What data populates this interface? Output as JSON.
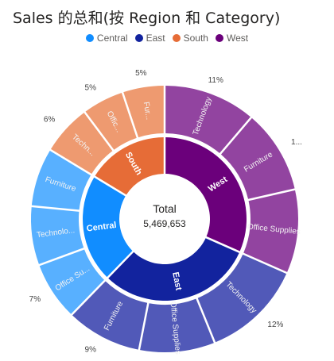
{
  "chart_data": {
    "type": "sunburst",
    "title": "Sales 的总和(按 Region 和 Category)",
    "legend": {
      "position": "top-center",
      "items": [
        {
          "name": "Central",
          "color": "#118dff"
        },
        {
          "name": "East",
          "color": "#12239e"
        },
        {
          "name": "South",
          "color": "#e66c37"
        },
        {
          "name": "West",
          "color": "#6b007b"
        }
      ]
    },
    "center": {
      "title": "Total",
      "value": "5,469,653"
    },
    "regions": [
      {
        "name": "West",
        "label": "West",
        "color": "#6b007b",
        "child_color": "#9244a0",
        "children": [
          {
            "name": "Technology",
            "label": "Technology",
            "value": 0.11,
            "pct_label": "11%"
          },
          {
            "name": "Furniture",
            "label": "Furniture",
            "value": 0.1,
            "pct_label": "1..."
          },
          {
            "name": "Office Supplies",
            "label": "Office Supplies",
            "value": 0.1,
            "pct_label": ""
          }
        ]
      },
      {
        "name": "East",
        "label": "East",
        "color": "#12239e",
        "child_color": "#5159b8",
        "children": [
          {
            "name": "Technology",
            "label": "Technology",
            "value": 0.12,
            "pct_label": "12%"
          },
          {
            "name": "Office Supplies",
            "label": "Office Supplies",
            "value": 0.09,
            "pct_label": ""
          },
          {
            "name": "Furniture",
            "label": "Furniture",
            "value": 0.09,
            "pct_label": "9%"
          }
        ]
      },
      {
        "name": "Central",
        "label": "Central",
        "color": "#118dff",
        "child_color": "#58b0ff",
        "children": [
          {
            "name": "Office Supplies",
            "label": "Office Su...",
            "value": 0.07,
            "pct_label": "7%"
          },
          {
            "name": "Technology",
            "label": "Technolo...",
            "value": 0.07,
            "pct_label": ""
          },
          {
            "name": "Furniture",
            "label": "Furniture",
            "value": 0.07,
            "pct_label": ""
          }
        ]
      },
      {
        "name": "South",
        "label": "South",
        "color": "#e66c37",
        "child_color": "#ee9a70",
        "children": [
          {
            "name": "Technology",
            "label": "Techn...",
            "value": 0.06,
            "pct_label": "6%"
          },
          {
            "name": "Office Supplies",
            "label": "Offic...",
            "value": 0.05,
            "pct_label": "5%"
          },
          {
            "name": "Furniture",
            "label": "Fur...",
            "value": 0.05,
            "pct_label": "5%"
          }
        ]
      }
    ]
  }
}
